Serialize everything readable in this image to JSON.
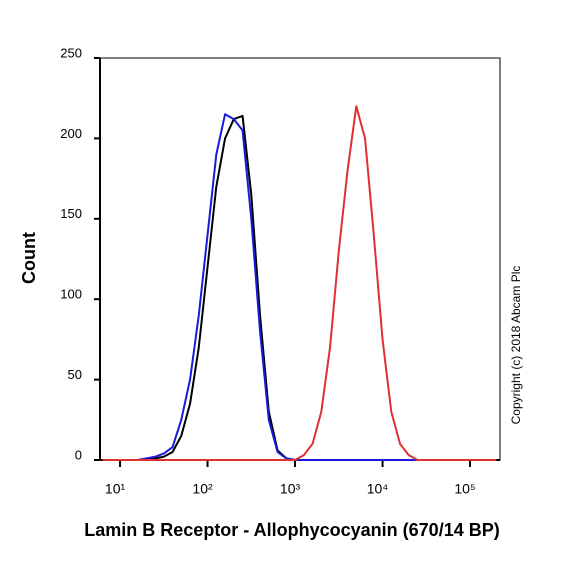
{
  "chart_data": {
    "type": "line",
    "x_label": "Lamin B Receptor - Allophycocyanin (670/14 BP)",
    "y_label": "Count",
    "annotation": "Copyright (c) 2018 Abcam Plc",
    "xscale": "log",
    "xlim": [
      5.9,
      220000
    ],
    "ylim": [
      0,
      250
    ],
    "xticks": [
      {
        "value": 10,
        "label": "10¹"
      },
      {
        "value": 100,
        "label": "10²"
      },
      {
        "value": 1000,
        "label": "10³"
      },
      {
        "value": 10000,
        "label": "10⁴"
      },
      {
        "value": 100000,
        "label": "10⁵"
      }
    ],
    "yticks": [
      0,
      50,
      100,
      150,
      200,
      250
    ],
    "x": [
      6.3,
      7.9,
      10,
      12.6,
      15.8,
      20,
      25.1,
      31.6,
      39.8,
      50.1,
      63.1,
      79.4,
      100,
      125.9,
      158.5,
      199.5,
      251.2,
      316.2,
      398.1,
      501.2,
      631,
      794.3,
      1000,
      1258.9,
      1584.9,
      1995.3,
      2511.9,
      3162.3,
      3981.1,
      5011.9,
      6309.6,
      7943.3,
      10000,
      12589,
      15849,
      19953,
      25119,
      31623,
      39811,
      50119,
      63096,
      79433,
      100000,
      125893,
      158489,
      199526
    ],
    "series": [
      {
        "color": "#000000",
        "values": [
          0,
          0,
          0,
          0,
          0,
          0,
          1,
          2,
          5,
          15,
          35,
          70,
          120,
          170,
          200,
          212,
          214,
          165,
          90,
          30,
          6,
          1,
          0,
          0,
          0,
          0,
          0,
          0,
          0,
          0,
          0,
          0,
          0,
          0,
          0,
          0,
          0,
          0,
          0,
          0,
          0,
          0,
          0,
          0,
          0,
          0
        ]
      },
      {
        "color": "#1a1adb",
        "values": [
          0,
          0,
          0,
          0,
          0,
          1,
          2,
          4,
          8,
          25,
          50,
          90,
          140,
          190,
          215,
          212,
          205,
          150,
          80,
          25,
          5,
          1,
          0,
          0,
          0,
          0,
          0,
          0,
          0,
          0,
          0,
          0,
          0,
          0,
          0,
          0,
          0,
          0,
          0,
          0,
          0,
          0,
          0,
          0,
          0,
          0
        ]
      },
      {
        "color": "#e03030",
        "values": [
          0,
          0,
          0,
          0,
          0,
          0,
          0,
          0,
          0,
          0,
          0,
          0,
          0,
          0,
          0,
          0,
          0,
          0,
          0,
          0,
          0,
          0,
          0,
          3,
          10,
          30,
          70,
          130,
          180,
          220,
          200,
          140,
          75,
          30,
          10,
          3,
          0,
          0,
          0,
          0,
          0,
          0,
          0,
          0,
          0,
          0
        ]
      }
    ]
  }
}
